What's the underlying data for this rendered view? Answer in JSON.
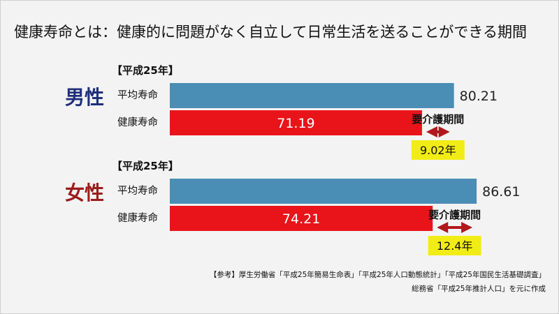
{
  "title": "健康寿命とは：健康的に問題がなく自立して日常生活を送ることができる期間",
  "colors": {
    "male_label": "#1f2f7a",
    "female_label": "#9a1d1d",
    "average_bar": "#4a8db5",
    "healthy_bar": "#e8141a",
    "arrow": "#b1181c",
    "callout_bg": "#f2ec16"
  },
  "chart_data": {
    "type": "bar",
    "orientation": "horizontal",
    "categories": [
      "平均寿命",
      "健康寿命"
    ],
    "x_min": 0,
    "groups": [
      {
        "period": "【平成25年】",
        "label": "男性",
        "average_label": "平均寿命",
        "healthy_label": "健康寿命",
        "average": 80.21,
        "healthy": 71.19,
        "average_text": "80.21",
        "healthy_text": "71.19",
        "gap_label": "要介護期間",
        "gap_text": "9.02年"
      },
      {
        "period": "【平成25年】",
        "label": "女性",
        "average_label": "平均寿命",
        "healthy_label": "健康寿命",
        "average": 86.61,
        "healthy": 74.21,
        "average_text": "86.61",
        "healthy_text": "74.21",
        "gap_label": "要介護期間",
        "gap_text": "12.4年"
      }
    ]
  },
  "source": {
    "line1": "【参考】厚生労働省「平成25年簡易生命表」「平成25年人口動態統計」「平成25年国民生活基礎調査」",
    "line2": "総務省「平成25年推計人口」を元に作成"
  }
}
